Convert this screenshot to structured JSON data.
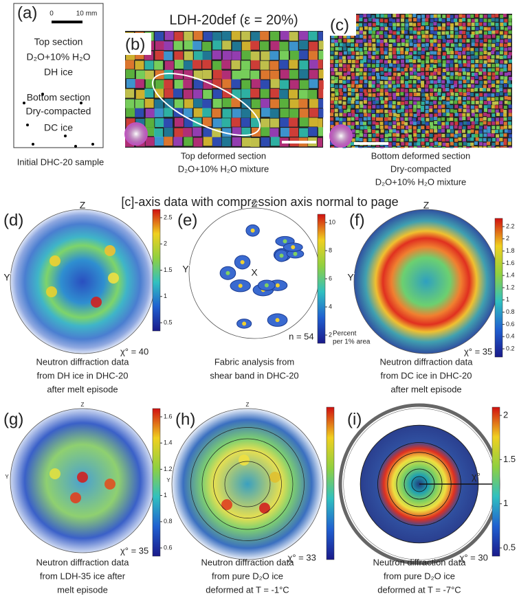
{
  "panel_a": {
    "label": "(a)",
    "scale_start": "0",
    "scale_end": "10 mm",
    "lines": [
      "Top section",
      "D₂O+10% H₂O",
      "DH ice",
      "Bottom section",
      "Dry-compacted",
      "DC ice"
    ],
    "caption": "Initial DHC-20 sample"
  },
  "title": "LDH-20def  (ε = 20%)",
  "panel_b": {
    "label": "(b)",
    "caption": [
      "Top deformed section",
      "D₂O+10% H₂O mixture"
    ]
  },
  "panel_c": {
    "label": "(c)",
    "caption": [
      "Bottom deformed section",
      "Dry-compacted",
      "D₂O+10% H₂O mixture"
    ]
  },
  "heading": "[c]-axis data with compression axis normal to page",
  "pole_figures": [
    {
      "label": "(d)",
      "axes": [
        "Z",
        "Y"
      ],
      "colorbar_ticks": [
        2.5,
        2,
        1.5,
        1,
        0.5
      ],
      "stat": "χ° = 40",
      "caption": [
        "Neutron diffraction data",
        "from DH ice in DHC-20",
        "after melt episode"
      ]
    },
    {
      "label": "(e)",
      "axes": [
        "Z",
        "Y",
        "X"
      ],
      "colorbar_ticks": [
        10,
        8,
        6,
        4,
        2
      ],
      "colorbar_title": [
        "Percent",
        "per 1% area"
      ],
      "stat": "n = 54",
      "caption": [
        "Fabric analysis from",
        "shear band in DHC-20"
      ]
    },
    {
      "label": "(f)",
      "axes": [
        "Z",
        "Y"
      ],
      "colorbar_ticks": [
        2.2,
        2,
        1.8,
        1.6,
        1.4,
        1.2,
        1,
        0.8,
        0.6,
        0.4,
        0.2
      ],
      "stat": "χ° = 35",
      "caption": [
        "Neutron diffraction data",
        "from DC ice in DHC-20",
        "after melt episode"
      ]
    },
    {
      "label": "(g)",
      "axes": [
        "Z",
        "Y"
      ],
      "colorbar_ticks": [
        1.6,
        1.4,
        1.2,
        1,
        0.8,
        0.6
      ],
      "stat": "χ° = 35",
      "caption": [
        "Neutron diffraction data",
        "from LDH-35 ice after",
        "melt episode"
      ]
    },
    {
      "label": "(h)",
      "axes": [
        "Z",
        "Y"
      ],
      "stat": "χ° = 33",
      "caption": [
        "Neutron diffraction data",
        "from pure D₂O ice",
        "deformed at T = -1°C"
      ]
    },
    {
      "label": "(i)",
      "axes": [],
      "annotation": "χ°",
      "colorbar_ticks": [
        2,
        1.5,
        1,
        0.5
      ],
      "stat": "χ° = 30",
      "caption": [
        "Neutron diffraction data",
        "from pure D₂O ice",
        "deformed at T = -7°C"
      ]
    }
  ]
}
